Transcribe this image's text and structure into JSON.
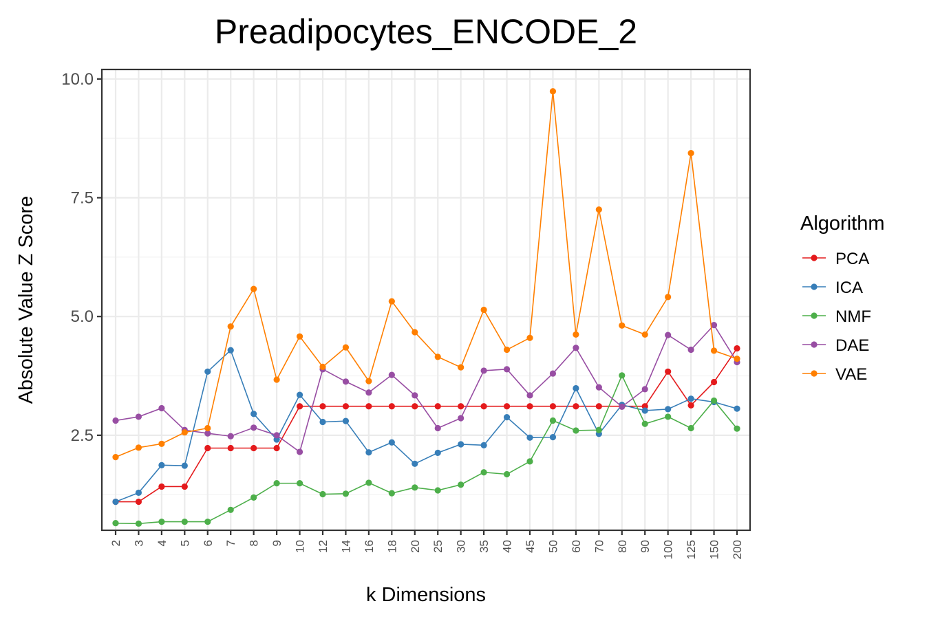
{
  "chart_data": {
    "type": "line",
    "title": "Preadipocytes_ENCODE_2",
    "xlabel": "k Dimensions",
    "ylabel": "Absolute Value Z Score",
    "categories": [
      "2",
      "3",
      "4",
      "5",
      "6",
      "7",
      "8",
      "9",
      "10",
      "12",
      "14",
      "16",
      "18",
      "20",
      "25",
      "30",
      "35",
      "40",
      "45",
      "50",
      "60",
      "70",
      "80",
      "90",
      "100",
      "125",
      "150",
      "200"
    ],
    "ylim": [
      0.5,
      10.2
    ],
    "yticks": [
      2.5,
      5.0,
      7.5,
      10.0
    ],
    "ytick_labels": [
      "2.5",
      "5.0",
      "7.5",
      "10.0"
    ],
    "grid": true,
    "legend_title": "Algorithm",
    "legend_position": "right",
    "series": [
      {
        "name": "PCA",
        "color": "#e41a1c",
        "values": [
          1.1,
          1.1,
          1.42,
          1.42,
          2.23,
          2.23,
          2.23,
          2.23,
          3.11,
          3.11,
          3.11,
          3.11,
          3.11,
          3.11,
          3.11,
          3.11,
          3.11,
          3.11,
          3.11,
          3.11,
          3.11,
          3.11,
          3.11,
          3.11,
          3.84,
          3.13,
          3.62,
          4.33
        ]
      },
      {
        "name": "ICA",
        "color": "#377eb8",
        "values": [
          1.1,
          1.29,
          1.87,
          1.86,
          3.84,
          4.29,
          2.95,
          2.41,
          3.35,
          2.78,
          2.8,
          2.14,
          2.35,
          1.9,
          2.13,
          2.31,
          2.29,
          2.88,
          2.45,
          2.46,
          3.49,
          2.53,
          3.14,
          3.02,
          3.05,
          3.27,
          3.2,
          3.06
        ]
      },
      {
        "name": "NMF",
        "color": "#4daf4a",
        "values": [
          0.65,
          0.64,
          0.68,
          0.68,
          0.68,
          0.93,
          1.19,
          1.49,
          1.49,
          1.26,
          1.27,
          1.5,
          1.28,
          1.4,
          1.34,
          1.46,
          1.72,
          1.68,
          1.95,
          2.81,
          2.6,
          2.61,
          3.76,
          2.74,
          2.89,
          2.65,
          3.23,
          2.64
        ]
      },
      {
        "name": "DAE",
        "color": "#984ea3",
        "values": [
          2.81,
          2.89,
          3.07,
          2.61,
          2.54,
          2.48,
          2.66,
          2.5,
          2.15,
          3.89,
          3.63,
          3.4,
          3.77,
          3.34,
          2.65,
          2.86,
          3.86,
          3.89,
          3.34,
          3.8,
          4.34,
          3.51,
          3.1,
          3.47,
          4.61,
          4.3,
          4.82,
          4.04
        ]
      },
      {
        "name": "VAE",
        "color": "#ff7f00",
        "values": [
          2.04,
          2.24,
          2.32,
          2.56,
          2.65,
          4.79,
          5.58,
          3.67,
          4.58,
          3.94,
          4.35,
          3.64,
          5.32,
          4.67,
          4.15,
          3.93,
          5.14,
          4.3,
          4.55,
          9.74,
          4.62,
          7.25,
          4.81,
          4.62,
          5.41,
          8.44,
          4.28,
          4.11
        ]
      }
    ]
  }
}
